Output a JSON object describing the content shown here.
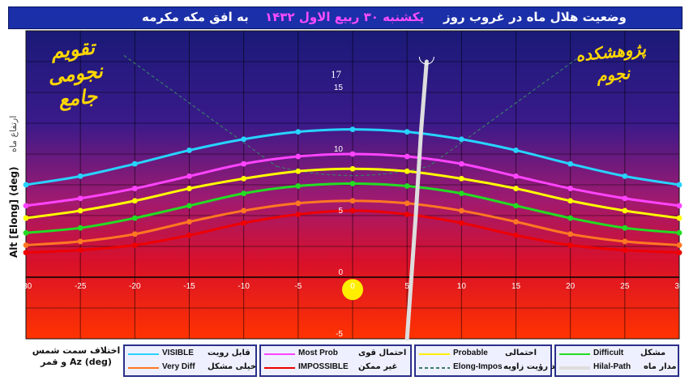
{
  "title": {
    "part1": "وضعیت هلال ماه در غروب روز",
    "part2": "یکشنبه ۳۰ ربیع الاول ۱۴۳۲",
    "part3": "به افق مکه مکرمه",
    "part1_color": "#ffffff",
    "part2_color": "#ff4cff",
    "part3_color": "#ffffff"
  },
  "logos": {
    "left": "تقویم نجومی جامع",
    "right": "پژوهشکده نجوم"
  },
  "moon_altitude_label": "17",
  "colors": {
    "plot_top": "#1a1a80",
    "plot_mid": "#9a1a7a",
    "plot_bottom": "#ff2a00",
    "sun": "#ffee00",
    "moon_path": "#dddddd",
    "title_bg": "#1b2fa8"
  },
  "chart_data": {
    "type": "line",
    "title": "وضعیت هلال ماه در غروب روز یکشنبه ۳۰ ربیع الاول ۱۴۳۲ به افق مکه مکرمه",
    "xlabel": "اختلاف سمت شمس و قمر Az (deg)",
    "ylabel": "Alt [Elong] (deg)",
    "ylabel_fa": "ارتفاع ماه",
    "xlim": [
      -30,
      30
    ],
    "ylim": [
      -5,
      20
    ],
    "xticks": [
      -30,
      -25,
      -20,
      -15,
      -10,
      -5,
      0,
      5,
      10,
      15,
      20,
      25,
      30
    ],
    "xtick_labels": [
      "-30",
      "-25",
      "-20",
      "-15",
      "-10",
      "-5",
      "0",
      "5",
      "10",
      "15",
      "20",
      "25",
      "30"
    ],
    "yticks": [
      -5,
      0,
      5,
      10,
      15
    ],
    "ytick_labels": [
      "-5",
      "0",
      "5",
      "10",
      "15"
    ],
    "grid": true,
    "x": [
      -30,
      -25,
      -20,
      -15,
      -10,
      -5,
      0,
      5,
      10,
      15,
      20,
      25,
      30
    ],
    "series": [
      {
        "name": "VISIBLE",
        "name_fa": "قابل رویت",
        "color": "#27d4ff",
        "values": [
          7.5,
          8.2,
          9.2,
          10.3,
          11.2,
          11.8,
          12.0,
          11.8,
          11.2,
          10.3,
          9.2,
          8.2,
          7.5
        ]
      },
      {
        "name": "Most Prob",
        "name_fa": "احتمال قوی",
        "color": "#ff44ff",
        "values": [
          5.8,
          6.4,
          7.2,
          8.2,
          9.2,
          9.8,
          10.0,
          9.8,
          9.2,
          8.2,
          7.2,
          6.4,
          5.8
        ]
      },
      {
        "name": "Probable",
        "name_fa": "احتمالی",
        "color": "#ffff00",
        "values": [
          4.8,
          5.4,
          6.2,
          7.2,
          8.0,
          8.6,
          8.8,
          8.6,
          8.0,
          7.2,
          6.2,
          5.4,
          4.8
        ]
      },
      {
        "name": "Difficult",
        "name_fa": "مشکل",
        "color": "#22dd22",
        "values": [
          3.6,
          4.0,
          4.8,
          5.8,
          6.8,
          7.4,
          7.6,
          7.4,
          6.8,
          5.8,
          4.8,
          4.0,
          3.6
        ]
      },
      {
        "name": "Very Diff",
        "name_fa": "خیلی مشکل",
        "color": "#ff7722",
        "values": [
          2.6,
          2.9,
          3.5,
          4.5,
          5.4,
          6.0,
          6.2,
          6.0,
          5.4,
          4.5,
          3.5,
          2.9,
          2.6
        ]
      },
      {
        "name": "IMPOSSIBLE",
        "name_fa": "غیر ممکن",
        "color": "#ee0000",
        "values": [
          2.0,
          2.2,
          2.6,
          3.4,
          4.4,
          5.1,
          5.4,
          5.1,
          4.4,
          3.4,
          2.6,
          2.2,
          2.0
        ]
      }
    ],
    "elong_impos": {
      "name": "Elong-Impos",
      "name_fa": "حد رؤیت زاویه",
      "color": "#3a7a6a"
    },
    "hilal_path": {
      "name": "Hilal-Path",
      "name_fa": "مدار ماه",
      "color": "#dddddd",
      "points": [
        [
          5.0,
          -5.0
        ],
        [
          5.8,
          5.0
        ],
        [
          6.3,
          12.0
        ],
        [
          6.8,
          17.5
        ]
      ]
    },
    "moon": {
      "x": 6.8,
      "y": 17.5
    },
    "sun": {
      "x": 0,
      "y": -1
    }
  }
}
